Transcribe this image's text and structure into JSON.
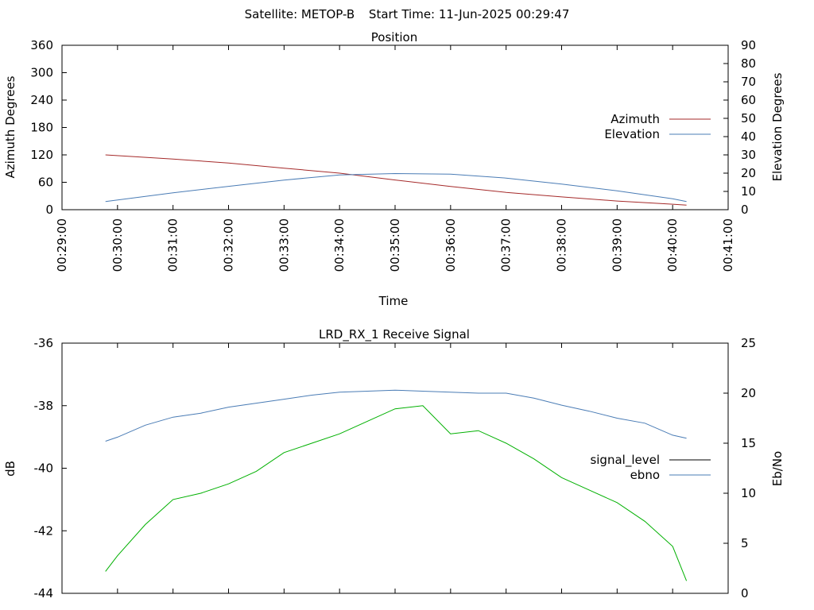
{
  "header": {
    "satellite_label": "Satellite: METOP-B",
    "start_time_label": "Start Time: 11-Jun-2025 00:29:47"
  },
  "colors": {
    "azimuth": "#a52a2a",
    "elevation": "#4a7cb5",
    "signal_level": "#000000",
    "ebno": "#4a7cb5",
    "signal_trace": "#00b000"
  },
  "chart_data": [
    {
      "type": "line",
      "title": "Position",
      "xlabel": "Time",
      "ylabel": "Azimuth Degrees",
      "y2label": "Elevation Degrees",
      "xlim": [
        "00:29:00",
        "00:41:00"
      ],
      "x_ticks": [
        "00:29:00",
        "00:30:00",
        "00:31:00",
        "00:32:00",
        "00:33:00",
        "00:34:00",
        "00:35:00",
        "00:36:00",
        "00:37:00",
        "00:38:00",
        "00:39:00",
        "00:40:00",
        "00:41:00"
      ],
      "ylim": [
        0,
        360
      ],
      "y_ticks": [
        "0",
        "60",
        "120",
        "180",
        "240",
        "300",
        "360"
      ],
      "y2lim": [
        0,
        90
      ],
      "y2_ticks": [
        "0",
        "10",
        "20",
        "30",
        "40",
        "50",
        "60",
        "70",
        "80",
        "90"
      ],
      "legend": "right",
      "x": [
        "00:29:47",
        "00:31:00",
        "00:32:00",
        "00:33:00",
        "00:34:00",
        "00:35:00",
        "00:36:00",
        "00:37:00",
        "00:38:00",
        "00:39:00",
        "00:40:00",
        "00:40:15"
      ],
      "series": [
        {
          "name": "Azimuth",
          "axis": "left",
          "values": [
            120,
            111,
            102,
            91,
            80,
            65,
            51,
            38,
            28,
            19,
            12,
            10
          ]
        },
        {
          "name": "Elevation",
          "axis": "right",
          "values": [
            4.5,
            9.2,
            12.8,
            16.2,
            19.0,
            19.8,
            19.5,
            17.3,
            14.0,
            10.3,
            6.0,
            4.5
          ]
        }
      ]
    },
    {
      "type": "line",
      "title": "LRD_RX_1 Receive Signal",
      "xlabel": "",
      "ylabel": "dB",
      "y2label": "Eb/No",
      "xlim": [
        "00:29:00",
        "00:41:00"
      ],
      "ylim": [
        -44,
        -36
      ],
      "y_ticks": [
        "-44",
        "-42",
        "-40",
        "-38",
        "-36"
      ],
      "y2lim": [
        0,
        25
      ],
      "y2_ticks": [
        "0",
        "5",
        "10",
        "15",
        "20",
        "25"
      ],
      "legend": "right",
      "x": [
        "00:29:47",
        "00:30:00",
        "00:30:30",
        "00:31:00",
        "00:31:30",
        "00:32:00",
        "00:32:30",
        "00:33:00",
        "00:33:30",
        "00:34:00",
        "00:34:30",
        "00:35:00",
        "00:35:30",
        "00:36:00",
        "00:36:30",
        "00:37:00",
        "00:37:30",
        "00:38:00",
        "00:38:30",
        "00:39:00",
        "00:39:30",
        "00:40:00",
        "00:40:15"
      ],
      "series": [
        {
          "name": "signal_level",
          "axis": "left",
          "values": [
            -43.3,
            -42.8,
            -41.8,
            -41.0,
            -40.8,
            -40.5,
            -40.1,
            -39.5,
            -39.2,
            -38.9,
            -38.5,
            -38.1,
            -38.0,
            -38.9,
            -38.8,
            -39.2,
            -39.7,
            -40.3,
            -40.7,
            -41.1,
            -41.7,
            -42.5,
            -43.6
          ]
        },
        {
          "name": "ebno",
          "axis": "right",
          "values": [
            15.2,
            15.6,
            16.8,
            17.6,
            18.0,
            18.6,
            19.0,
            19.4,
            19.8,
            20.1,
            20.2,
            20.3,
            20.2,
            20.1,
            20.0,
            20.0,
            19.5,
            18.8,
            18.2,
            17.5,
            17.0,
            15.8,
            15.5
          ]
        }
      ]
    }
  ]
}
